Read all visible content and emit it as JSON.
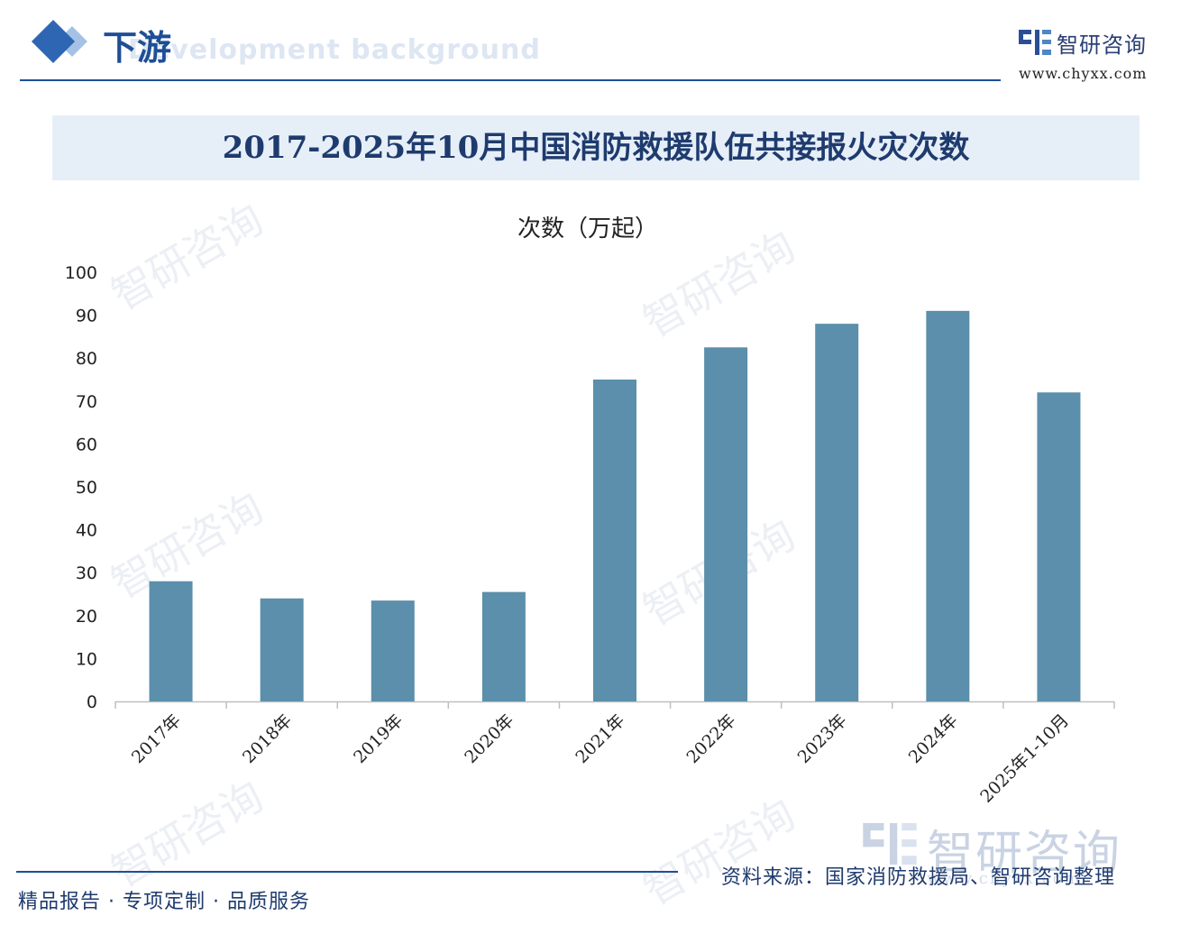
{
  "header": {
    "section_title": "下游",
    "section_subtitle": "Development background",
    "brand_name": "智研咨询",
    "brand_url": "www.chyxx.com",
    "accent_color": "#1e4f96"
  },
  "chart_data": {
    "type": "bar",
    "title": "2017-2025年10月中国消防救援队伍共接报火灾次数",
    "ylabel": "次数（万起）",
    "xlabel": "",
    "categories": [
      "2017年",
      "2018年",
      "2019年",
      "2020年",
      "2021年",
      "2022年",
      "2023年",
      "2024年",
      "2025年1-10月"
    ],
    "values": [
      28,
      24,
      23.5,
      25.5,
      75,
      82.5,
      88,
      91,
      72
    ],
    "ylim": [
      0,
      100
    ],
    "yticks": [
      "0",
      "10",
      "20",
      "30",
      "40",
      "50",
      "60",
      "70",
      "80",
      "90",
      "100"
    ],
    "grid": false,
    "legend": "none",
    "bar_color": "#5b8fab"
  },
  "footer": {
    "slogan": "精品报告 · 专项定制 · 品质服务",
    "source": "资料来源：国家消防救援局、智研咨询整理",
    "logo_text": "智研咨询",
    "logo_url": "www.chyxx.com"
  },
  "watermark": {
    "text": "智研咨询"
  }
}
